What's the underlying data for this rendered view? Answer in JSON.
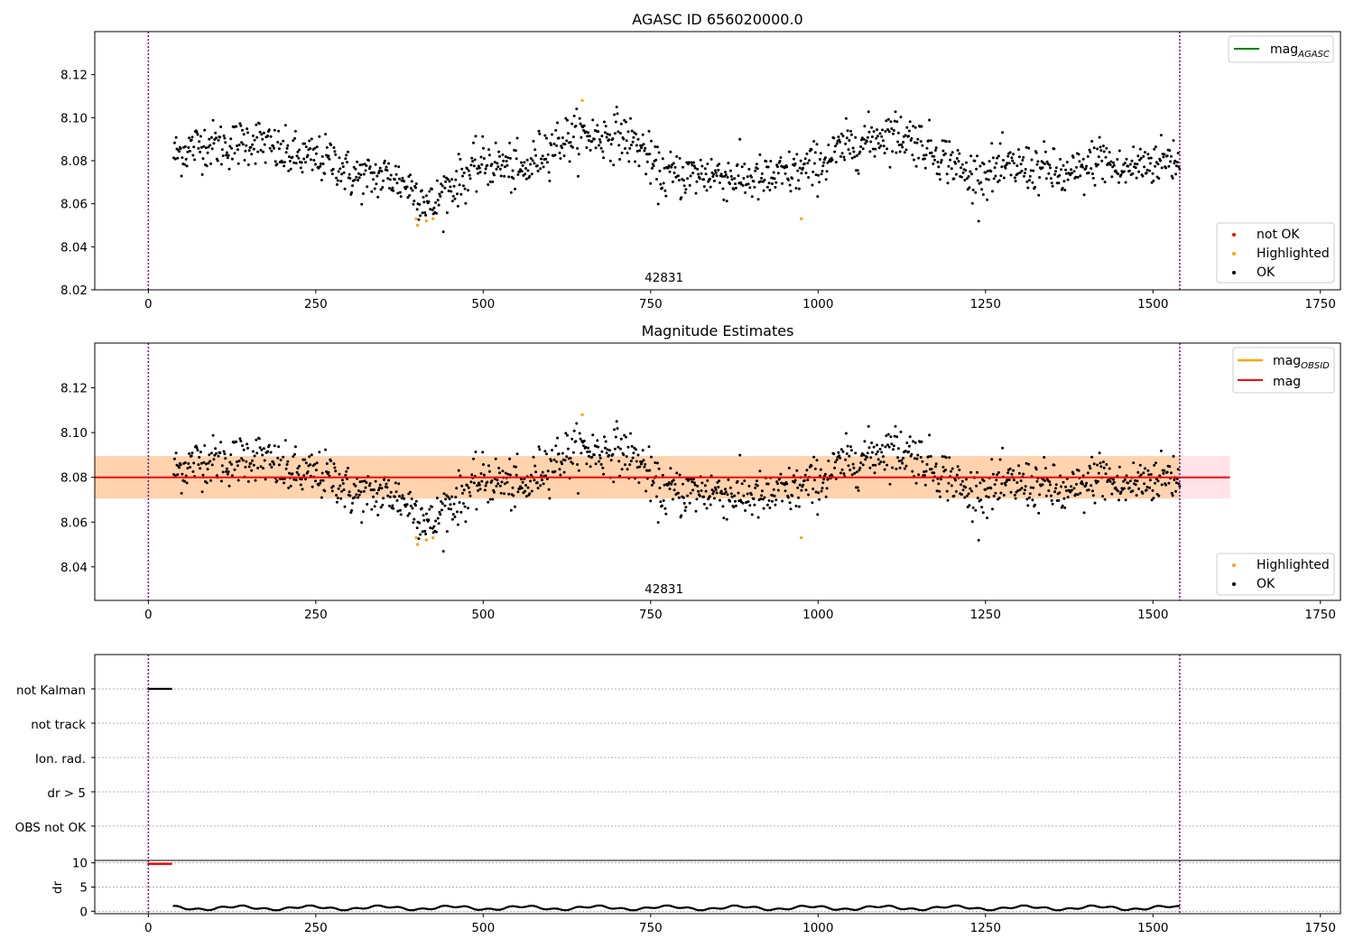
{
  "chart_data": [
    {
      "type": "scatter",
      "title": "AGASC ID 656020000.0",
      "xlim": [
        -80,
        1780
      ],
      "ylim": [
        8.02,
        8.14
      ],
      "xticks": [
        0,
        250,
        500,
        750,
        1000,
        1250,
        1500,
        1750
      ],
      "yticks": [
        8.02,
        8.04,
        8.06,
        8.08,
        8.1,
        8.12
      ],
      "ytick_labels": [
        "8.02",
        "8.04",
        "8.06",
        "8.08",
        "8.10",
        "8.12"
      ],
      "obs_label": "42831",
      "obs_label_x": 770,
      "vlines": [
        0,
        1540
      ],
      "vline_color": "#800080",
      "line_legend": [
        {
          "name": "mag",
          "sub": "AGASC",
          "color": "#008000"
        }
      ],
      "point_legend": [
        {
          "name": "not OK",
          "color": "#ff0000"
        },
        {
          "name": "Highlighted",
          "color": "#ffa500"
        },
        {
          "name": "OK",
          "color": "#000000"
        }
      ],
      "grid": false,
      "legend_placement": [
        "upper right",
        "lower right"
      ]
    },
    {
      "type": "scatter",
      "title": "Magnitude Estimates",
      "xlim": [
        -80,
        1780
      ],
      "ylim": [
        8.025,
        8.14
      ],
      "xticks": [
        0,
        250,
        500,
        750,
        1000,
        1250,
        1500,
        1750
      ],
      "yticks": [
        8.04,
        8.06,
        8.08,
        8.1,
        8.12
      ],
      "ytick_labels": [
        "8.04",
        "8.06",
        "8.08",
        "8.10",
        "8.12"
      ],
      "obs_label": "42831",
      "obs_label_x": 770,
      "vlines": [
        0,
        1540
      ],
      "vline_color": "#800080",
      "mag_line": {
        "value": 8.08,
        "x_range": [
          -80,
          1615
        ],
        "color": "#ff0000"
      },
      "mag_band": {
        "low": 8.0705,
        "high": 8.0895,
        "x_range": [
          -80,
          1615
        ]
      },
      "obsid_band": {
        "low": 8.0705,
        "high": 8.0895,
        "x_range": [
          -80,
          1540
        ]
      },
      "line_legend": [
        {
          "name": "mag",
          "sub": "OBSID",
          "color": "#ffa500"
        },
        {
          "name": "mag",
          "sub": "",
          "color": "#ff0000"
        }
      ],
      "point_legend": [
        {
          "name": "Highlighted",
          "color": "#ffa500"
        },
        {
          "name": "OK",
          "color": "#000000"
        }
      ],
      "grid": false,
      "legend_placement": [
        "upper right",
        "lower right"
      ]
    },
    {
      "type": "scatter",
      "title": "",
      "xlim": [
        -80,
        1780
      ],
      "flag_labels": [
        "not Kalman",
        "not track",
        "Ion. rad.",
        "dr > 5",
        "OBS not OK"
      ],
      "flag_segments": [
        {
          "row": "not Kalman",
          "x_range": [
            0,
            35
          ]
        }
      ],
      "grid": "dotted horizontal",
      "vlines": [
        0,
        1540
      ]
    },
    {
      "type": "scatter",
      "title": "",
      "ylabel": "dr",
      "xlim": [
        -80,
        1780
      ],
      "ylim": [
        -0.5,
        10.5
      ],
      "xticks": [
        0,
        250,
        500,
        750,
        1000,
        1250,
        1500,
        1750
      ],
      "yticks": [
        0,
        5,
        10
      ],
      "ytick_labels": [
        "0",
        "5",
        "10"
      ],
      "dr_red_segment": {
        "x_range": [
          0,
          35
        ],
        "value": 9.8,
        "color": "#ff0000"
      },
      "dr_typical_range": [
        0.2,
        1.6
      ],
      "vlines": [
        0,
        1540
      ],
      "grid": "dotted horizontal"
    }
  ],
  "series_outline": {
    "x": [
      40,
      80,
      120,
      160,
      200,
      240,
      280,
      300,
      330,
      360,
      390,
      410,
      425,
      440,
      470,
      500,
      530,
      560,
      590,
      620,
      650,
      680,
      700,
      740,
      760,
      790,
      840,
      880,
      920,
      960,
      1000,
      1040,
      1080,
      1100,
      1140,
      1180,
      1200,
      1220,
      1260,
      1300,
      1340,
      1370,
      1400,
      1420,
      1450,
      1480,
      1510,
      1540
    ],
    "y": [
      8.083,
      8.088,
      8.087,
      8.09,
      8.083,
      8.081,
      8.08,
      8.073,
      8.072,
      8.073,
      8.068,
      8.063,
      8.058,
      8.066,
      8.072,
      8.079,
      8.078,
      8.074,
      8.085,
      8.09,
      8.092,
      8.091,
      8.093,
      8.085,
      8.074,
      8.073,
      8.074,
      8.072,
      8.071,
      8.074,
      8.078,
      8.086,
      8.09,
      8.093,
      8.091,
      8.083,
      8.08,
      8.073,
      8.075,
      8.077,
      8.076,
      8.072,
      8.076,
      8.082,
      8.075,
      8.078,
      8.08,
      8.081
    ],
    "highlighted": [
      {
        "x": 400,
        "y": 8.053
      },
      {
        "x": 402,
        "y": 8.05
      },
      {
        "x": 415,
        "y": 8.052
      },
      {
        "x": 425,
        "y": 8.053
      },
      {
        "x": 648,
        "y": 8.108
      },
      {
        "x": 975,
        "y": 8.053
      }
    ]
  }
}
